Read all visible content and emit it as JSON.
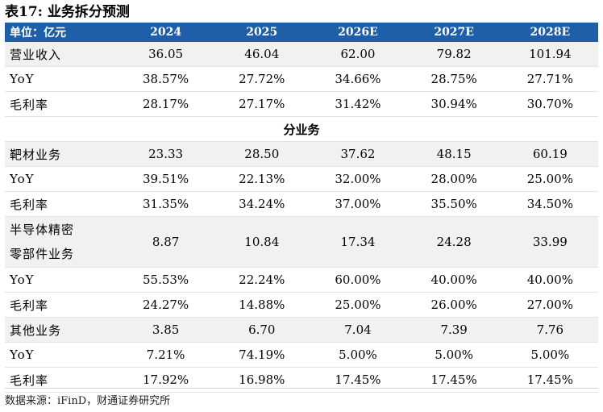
{
  "title": "表17: 业务拆分预测",
  "header": [
    "单位：亿元",
    "2024",
    "2025",
    "2026E",
    "2027E",
    "2028E"
  ],
  "total": [
    {
      "label": "营业收入",
      "values": [
        "36.05",
        "46.04",
        "62.00",
        "79.82",
        "101.94"
      ]
    },
    {
      "label": "YoY",
      "values": [
        "38.57%",
        "27.72%",
        "34.66%",
        "28.75%",
        "27.71%"
      ]
    },
    {
      "label": "毛利率",
      "values": [
        "28.17%",
        "27.17%",
        "31.42%",
        "30.94%",
        "30.70%"
      ]
    }
  ],
  "section_title": "分业务",
  "segments": [
    {
      "label_lines": [
        "靶材业务"
      ],
      "revenue": [
        "23.33",
        "28.50",
        "37.62",
        "48.15",
        "60.19"
      ],
      "yoy_label": "YoY",
      "yoy": [
        "39.51%",
        "22.13%",
        "32.00%",
        "28.00%",
        "25.00%"
      ],
      "margin_label": "毛利率",
      "margin": [
        "31.35%",
        "34.24%",
        "37.00%",
        "35.50%",
        "34.50%"
      ]
    },
    {
      "label_lines": [
        "半导体精密",
        "零部件业务"
      ],
      "revenue": [
        "8.87",
        "10.84",
        "17.34",
        "24.28",
        "33.99"
      ],
      "yoy_label": "YoY",
      "yoy": [
        "55.53%",
        "22.24%",
        "60.00%",
        "40.00%",
        "40.00%"
      ],
      "margin_label": "毛利率",
      "margin": [
        "24.27%",
        "14.88%",
        "25.00%",
        "26.00%",
        "27.00%"
      ]
    },
    {
      "label_lines": [
        "其他业务"
      ],
      "revenue": [
        "3.85",
        "6.70",
        "7.04",
        "7.39",
        "7.76"
      ],
      "yoy_label": "YoY",
      "yoy": [
        "7.21%",
        "74.19%",
        "5.00%",
        "5.00%",
        "5.00%"
      ],
      "margin_label": "毛利率",
      "margin": [
        "17.92%",
        "16.98%",
        "17.45%",
        "17.45%",
        "17.45%"
      ]
    }
  ],
  "source": "数据来源：iFinD，财通证券研究所"
}
